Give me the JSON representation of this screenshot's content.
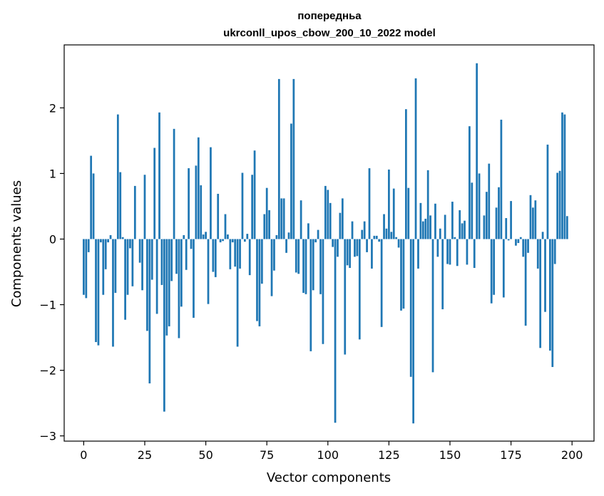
{
  "chart_data": {
    "type": "bar",
    "title": "попередньа",
    "subtitle": "ukrconll_upos_cbow_200_10_2022 model",
    "xlabel": "Vector components",
    "ylabel": "Components values",
    "xlim": [
      -8,
      209
    ],
    "ylim": [
      -3.08,
      2.96
    ],
    "xticks": [
      0,
      25,
      50,
      75,
      100,
      125,
      150,
      175,
      200
    ],
    "yticks": [
      -3,
      -2,
      -1,
      0,
      1,
      2
    ],
    "ytick_labels": [
      "−3",
      "−2",
      "−1",
      "0",
      "1",
      "2"
    ],
    "grid": false,
    "bar_color": "#1f77b4",
    "values": [
      -0.85,
      -0.9,
      -0.2,
      1.27,
      1.0,
      -1.57,
      -1.62,
      -0.05,
      -0.85,
      -0.46,
      -0.05,
      0.06,
      -1.64,
      -0.82,
      1.9,
      1.02,
      0.03,
      -1.23,
      -0.85,
      -0.14,
      -0.72,
      0.81,
      0.0,
      -0.36,
      -0.78,
      0.98,
      -1.4,
      -2.2,
      -0.62,
      1.39,
      -1.14,
      1.93,
      -0.7,
      -2.63,
      -1.47,
      -1.33,
      -0.64,
      1.68,
      -0.53,
      -1.51,
      -1.03,
      0.06,
      -0.47,
      1.08,
      -0.15,
      -1.2,
      1.12,
      1.55,
      0.82,
      0.07,
      0.11,
      -0.99,
      1.4,
      -0.5,
      -0.58,
      0.69,
      -0.05,
      -0.03,
      0.38,
      0.07,
      -0.46,
      -0.05,
      -0.42,
      -1.64,
      -0.45,
      1.01,
      -0.04,
      0.08,
      -0.55,
      0.98,
      1.35,
      -1.25,
      -1.33,
      -0.68,
      0.38,
      0.78,
      0.44,
      -0.87,
      -0.48,
      0.06,
      2.44,
      0.62,
      0.62,
      -0.21,
      0.1,
      1.76,
      2.44,
      -0.51,
      -0.53,
      0.59,
      -0.82,
      -0.84,
      0.24,
      -1.71,
      -0.78,
      -0.05,
      0.14,
      -0.84,
      -1.6,
      0.81,
      0.75,
      0.55,
      -0.12,
      -2.8,
      -0.27,
      0.4,
      0.62,
      -1.76,
      -0.4,
      -0.44,
      0.27,
      -0.27,
      -0.26,
      -1.53,
      0.14,
      0.27,
      -0.2,
      1.08,
      -0.45,
      0.05,
      0.05,
      -0.04,
      -1.34,
      0.38,
      0.16,
      1.06,
      0.11,
      0.77,
      0.03,
      -0.13,
      -1.09,
      -1.06,
      1.98,
      0.78,
      -2.1,
      -2.81,
      2.45,
      -0.45,
      0.55,
      0.27,
      0.31,
      1.05,
      0.36,
      -2.03,
      0.54,
      -0.27,
      0.16,
      -1.07,
      0.37,
      -0.38,
      -0.39,
      0.57,
      0.03,
      -0.41,
      0.44,
      0.24,
      0.28,
      -0.39,
      1.72,
      0.86,
      -0.44,
      2.68,
      1.0,
      0.0,
      0.36,
      0.72,
      1.15,
      -0.98,
      -0.85,
      0.48,
      0.79,
      1.82,
      -0.89,
      0.32,
      -0.02,
      0.58,
      0.0,
      -0.1,
      -0.06,
      0.03,
      -0.27,
      -1.32,
      -0.21,
      0.67,
      0.48,
      0.59,
      -0.45,
      -1.66,
      0.11,
      -1.11,
      1.44,
      -1.7,
      -1.95,
      -0.38,
      1.01,
      1.04,
      1.93,
      1.9,
      0.35
    ]
  }
}
